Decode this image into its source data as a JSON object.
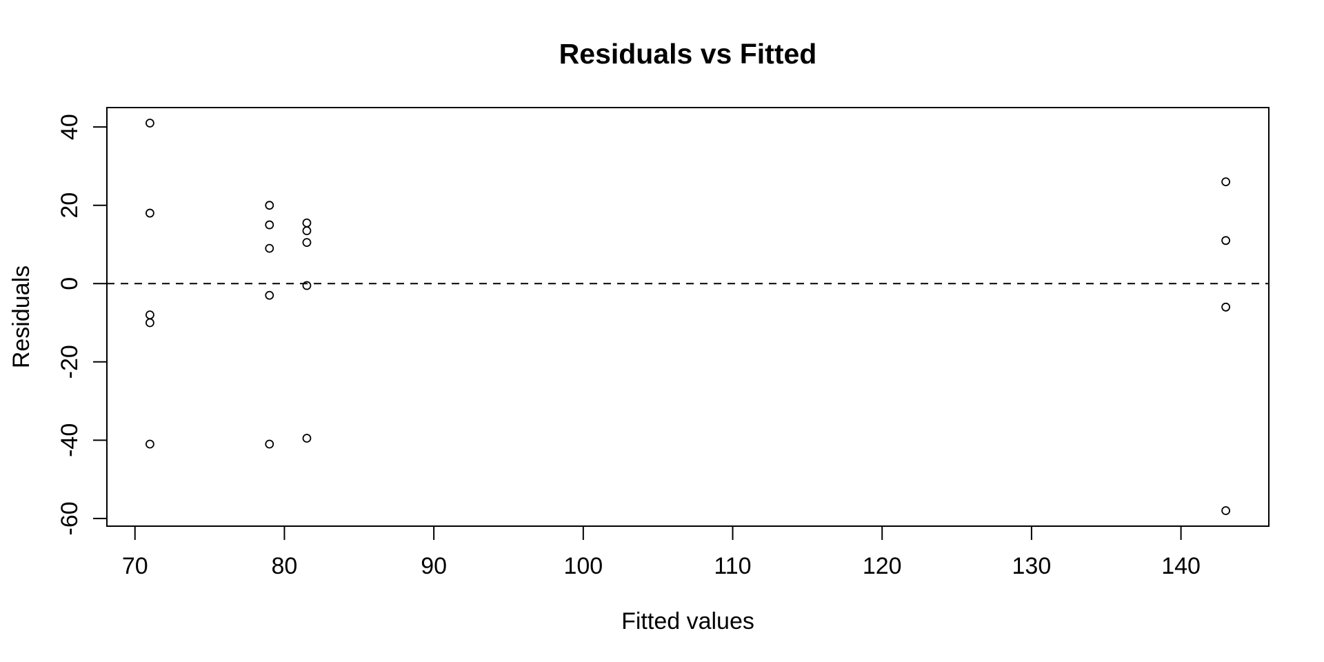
{
  "page": {
    "background_color": "#ffffff",
    "foreground_color": "#000000"
  },
  "chart_data": {
    "type": "scatter",
    "title": "Residuals vs Fitted",
    "xlabel": "Fitted values",
    "ylabel": "Residuals",
    "marker": "open-circle",
    "marker_color": "#000000",
    "grid": false,
    "legend": "none",
    "xlim": [
      68.12,
      145.88
    ],
    "ylim": [
      -61.96,
      44.96
    ],
    "x_ticks": [
      70,
      80,
      90,
      100,
      110,
      120,
      130,
      140
    ],
    "y_ticks": [
      40,
      20,
      0,
      -20,
      -40,
      -60
    ],
    "zero_line": {
      "y": 0,
      "style": "dashed",
      "color": "#000000"
    },
    "points": [
      {
        "x": 71,
        "y": 41
      },
      {
        "x": 71,
        "y": 18
      },
      {
        "x": 71,
        "y": -8
      },
      {
        "x": 71,
        "y": -10
      },
      {
        "x": 71,
        "y": -41
      },
      {
        "x": 79,
        "y": 20
      },
      {
        "x": 79,
        "y": 15
      },
      {
        "x": 79,
        "y": 9
      },
      {
        "x": 79,
        "y": -3
      },
      {
        "x": 79,
        "y": -41
      },
      {
        "x": 81.5,
        "y": 15.5
      },
      {
        "x": 81.5,
        "y": 13.5
      },
      {
        "x": 81.5,
        "y": 10.5
      },
      {
        "x": 81.5,
        "y": -0.5
      },
      {
        "x": 81.5,
        "y": -39.5
      },
      {
        "x": 143,
        "y": 26
      },
      {
        "x": 143,
        "y": 11
      },
      {
        "x": 143,
        "y": -6
      },
      {
        "x": 143,
        "y": -58
      }
    ]
  }
}
